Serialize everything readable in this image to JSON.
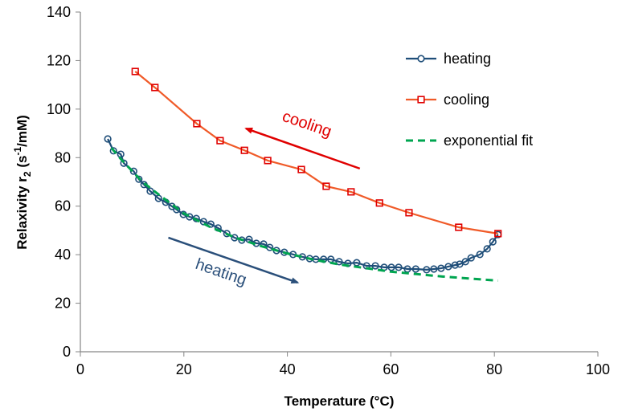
{
  "chart_data": {
    "type": "line",
    "xlabel": "Temperature (°C)",
    "ylabel_main": "Relaxivity r",
    "ylabel_sub": "2",
    "ylabel_units_pre": " (s",
    "ylabel_units_sup": "-1",
    "ylabel_units_post": "/mM)",
    "xlim": [
      0,
      100
    ],
    "ylim": [
      0,
      140
    ],
    "xticks": [
      0,
      20,
      40,
      60,
      80,
      100
    ],
    "yticks": [
      0,
      20,
      40,
      60,
      80,
      100,
      120,
      140
    ],
    "grid": false,
    "legend_position": "top-right",
    "colors": {
      "heating": "#1f4e79",
      "cooling": "#f05a28",
      "cooling_marker": "#e00000",
      "fit": "#00a550",
      "cooling_arrow": "#e00000",
      "heating_arrow": "#2a4f7a"
    },
    "series": [
      {
        "name": "heating",
        "marker": "circle",
        "x": [
          5.3,
          6.4,
          7.8,
          8.4,
          10.3,
          11.3,
          12.3,
          13.5,
          15.1,
          16.5,
          17.7,
          18.6,
          19.9,
          21.1,
          22.4,
          23.8,
          25.2,
          26.6,
          28.3,
          29.8,
          31.2,
          32.6,
          34.0,
          35.4,
          36.6,
          37.9,
          39.4,
          41.1,
          42.9,
          44.3,
          45.5,
          47.0,
          48.4,
          50.0,
          51.7,
          53.4,
          55.3,
          57.0,
          58.7,
          60.1,
          61.5,
          63.2,
          64.8,
          66.9,
          68.3,
          69.7,
          71.1,
          72.4,
          73.3,
          74.4,
          75.5,
          77.2,
          78.6,
          79.7,
          80.7
        ],
        "y": [
          87.7,
          82.8,
          81.4,
          77.7,
          74.4,
          71.1,
          68.9,
          66.2,
          63.2,
          61.6,
          59.9,
          58.6,
          56.6,
          55.6,
          54.9,
          53.6,
          52.6,
          51.0,
          48.7,
          47.0,
          46.0,
          46.3,
          44.7,
          44.4,
          43.0,
          41.7,
          41.0,
          40.1,
          39.1,
          38.4,
          38.1,
          38.1,
          38.1,
          37.1,
          36.4,
          36.7,
          35.4,
          35.4,
          34.8,
          34.8,
          34.8,
          34.1,
          34.1,
          33.8,
          34.1,
          34.4,
          35.1,
          35.7,
          36.1,
          37.1,
          38.7,
          40.1,
          42.4,
          45.3,
          48.3
        ]
      },
      {
        "name": "cooling",
        "marker": "square",
        "x": [
          10.6,
          14.4,
          22.5,
          27.0,
          31.7,
          36.2,
          42.7,
          47.5,
          52.3,
          57.8,
          63.5,
          73.1,
          80.7
        ],
        "y": [
          115.5,
          108.9,
          94.0,
          87.0,
          83.0,
          78.8,
          75.1,
          68.2,
          65.9,
          61.3,
          57.3,
          51.3,
          48.7
        ]
      },
      {
        "name": "exponential fit",
        "marker": "none",
        "dashed": true,
        "x": [
          6,
          8,
          10,
          12,
          15,
          20,
          25,
          30,
          35,
          40,
          45,
          50,
          55,
          60,
          65,
          70,
          75,
          80.7
        ],
        "y": [
          84,
          79,
          74.5,
          70,
          65,
          57,
          51.5,
          47,
          43.5,
          40.5,
          38,
          36,
          34.5,
          33,
          32,
          31,
          30.2,
          29.3
        ]
      }
    ],
    "annotations": [
      {
        "text": "cooling",
        "arrow_from": [
          54,
          75.5
        ],
        "arrow_to": [
          32,
          92
        ]
      },
      {
        "text": "heating",
        "arrow_from": [
          17,
          47
        ],
        "arrow_to": [
          42,
          28.5
        ]
      }
    ]
  }
}
